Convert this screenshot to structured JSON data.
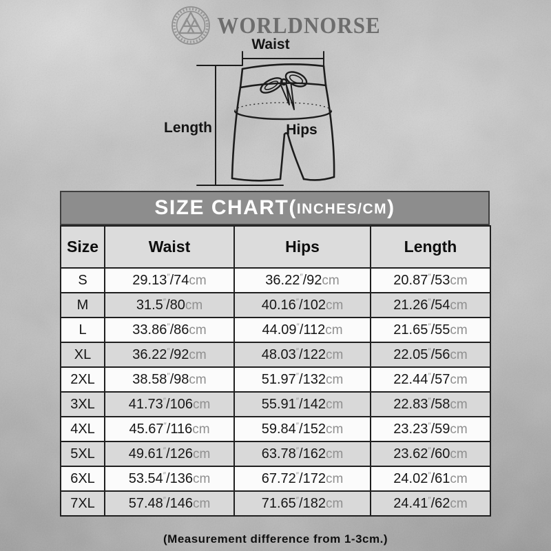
{
  "brand": {
    "name": "WORLDNORSE",
    "emblem": "valknut-icon"
  },
  "diagram": {
    "labels": {
      "waist": "Waist",
      "length": "Length",
      "hips": "Hips"
    }
  },
  "size_chart": {
    "title_prefix": "SIZE CHART(",
    "title_units": "INCHES/CM",
    "title_suffix": ")",
    "columns": [
      "Size",
      "Waist",
      "Hips",
      "Length"
    ],
    "inch_mark": "″",
    "separator": "/",
    "cm_unit": "cm",
    "rows": [
      {
        "size": "S",
        "waist": [
          "29.13",
          "74"
        ],
        "hips": [
          "36.22",
          "92"
        ],
        "length": [
          "20.87",
          "53"
        ]
      },
      {
        "size": "M",
        "waist": [
          "31.5",
          "80"
        ],
        "hips": [
          "40.16",
          "102"
        ],
        "length": [
          "21.26",
          "54"
        ]
      },
      {
        "size": "L",
        "waist": [
          "33.86",
          "86"
        ],
        "hips": [
          "44.09",
          "112"
        ],
        "length": [
          "21.65",
          "55"
        ]
      },
      {
        "size": "XL",
        "waist": [
          "36.22",
          "92"
        ],
        "hips": [
          "48.03",
          "122"
        ],
        "length": [
          "22.05",
          "56"
        ]
      },
      {
        "size": "2XL",
        "waist": [
          "38.58",
          "98"
        ],
        "hips": [
          "51.97",
          "132"
        ],
        "length": [
          "22.44",
          "57"
        ]
      },
      {
        "size": "3XL",
        "waist": [
          "41.73",
          "106"
        ],
        "hips": [
          "55.91",
          "142"
        ],
        "length": [
          "22.83",
          "58"
        ]
      },
      {
        "size": "4XL",
        "waist": [
          "45.67",
          "116"
        ],
        "hips": [
          "59.84",
          "152"
        ],
        "length": [
          "23.23",
          "59"
        ]
      },
      {
        "size": "5XL",
        "waist": [
          "49.61",
          "126"
        ],
        "hips": [
          "63.78",
          "162"
        ],
        "length": [
          "23.62",
          "60"
        ]
      },
      {
        "size": "6XL",
        "waist": [
          "53.54",
          "136"
        ],
        "hips": [
          "67.72",
          "172"
        ],
        "length": [
          "24.02",
          "61"
        ]
      },
      {
        "size": "7XL",
        "waist": [
          "57.48",
          "146"
        ],
        "hips": [
          "71.65",
          "182"
        ],
        "length": [
          "24.41",
          "62"
        ]
      }
    ],
    "footnote": "(Measurement difference from 1-3cm.)"
  },
  "colors": {
    "background": "#c6c6c6",
    "title_bar_bg": "#8d8d8d",
    "title_bar_text": "#ffffff",
    "table_header_bg": "#dcdcdc",
    "row_alt_bg": "#d9d9d9",
    "row_bg": "#fbfbfb",
    "ink": "#1f1f1f",
    "unit_gray": "#8f8f8f",
    "brand_gray": "#6d6d6d"
  }
}
